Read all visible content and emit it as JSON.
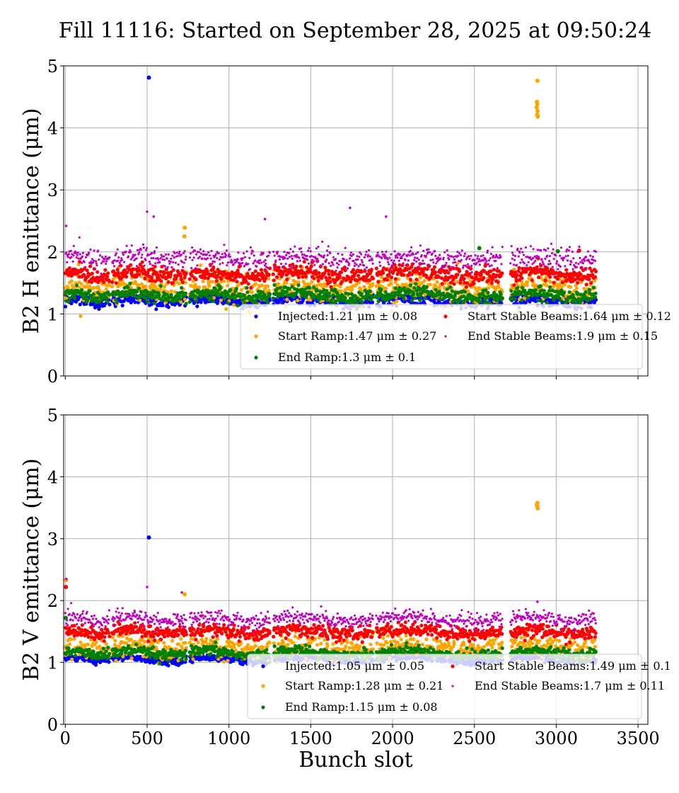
{
  "figure": {
    "title": "Fill 11116: Started on September 28, 2025 at 09:50:24"
  },
  "chart_data": [
    {
      "type": "scatter",
      "ylabel": "B2 H emittance (μm)",
      "xlabel": "",
      "xlim": [
        -10,
        3560
      ],
      "ylim": [
        0,
        5
      ],
      "x_ticks": [
        "0",
        "500",
        "1000",
        "1500",
        "2000",
        "2500",
        "3000",
        "3500"
      ],
      "y_ticks": [
        "0",
        "1",
        "2",
        "3",
        "4",
        "5"
      ],
      "grid": true,
      "legend_position": "lower-right",
      "occupied_ranges": [
        [
          0,
          270
        ],
        [
          285,
          740
        ],
        [
          760,
          1250
        ],
        [
          1270,
          1880
        ],
        [
          1900,
          2670
        ],
        [
          2720,
          3240
        ]
      ],
      "series": [
        {
          "name": "Injected",
          "legend": "Injected:1.21 μm ± 0.08",
          "mean": 1.21,
          "std": 0.08,
          "color": "#0000ff",
          "outliers": [
            [
              511,
              4.81
            ]
          ]
        },
        {
          "name": "Start Ramp",
          "legend": "Start Ramp:1.47 μm ± 0.27",
          "mean": 1.47,
          "std": 0.27,
          "color": "#ffa500",
          "outliers": [
            [
              730,
              2.39
            ],
            [
              728,
              2.25
            ],
            [
              2885,
              4.76
            ],
            [
              2882,
              4.42
            ],
            [
              2884,
              4.38
            ],
            [
              2880,
              4.33
            ],
            [
              2886,
              4.27
            ],
            [
              2883,
              4.21
            ],
            [
              2887,
              4.18
            ]
          ]
        },
        {
          "name": "End Ramp",
          "legend": "End Ramp:1.3 μm ± 0.1",
          "mean": 1.3,
          "std": 0.1,
          "color": "#008000",
          "outliers": [
            [
              2530,
              2.06
            ],
            [
              3010,
              2.01
            ]
          ]
        },
        {
          "name": "Start Stable Beams",
          "legend": "Start Stable Beams:1.64 μm ± 0.12",
          "mean": 1.64,
          "std": 0.12,
          "color": "#ff0000",
          "outliers": [
            [
              3140,
              2.02
            ]
          ]
        },
        {
          "name": "End Stable Beams",
          "legend": "End Stable Beams:1.9 μm ± 0.15",
          "mean": 1.9,
          "std": 0.15,
          "color": "#bf00bf",
          "outliers": [
            [
              500,
              2.65
            ],
            [
              1740,
              2.71
            ],
            [
              1960,
              2.57
            ],
            [
              1220,
              2.53
            ],
            [
              540,
              2.57
            ],
            [
              5,
              2.42
            ]
          ]
        }
      ]
    },
    {
      "type": "scatter",
      "ylabel": "B2 V emittance (μm)",
      "xlabel": "Bunch slot",
      "xlim": [
        -10,
        3560
      ],
      "ylim": [
        0,
        5
      ],
      "x_ticks": [
        "0",
        "500",
        "1000",
        "1500",
        "2000",
        "2500",
        "3000",
        "3500"
      ],
      "y_ticks": [
        "0",
        "1",
        "2",
        "3",
        "4",
        "5"
      ],
      "grid": true,
      "legend_position": "lower-right",
      "occupied_ranges": [
        [
          0,
          270
        ],
        [
          285,
          740
        ],
        [
          760,
          1250
        ],
        [
          1270,
          1880
        ],
        [
          1900,
          2670
        ],
        [
          2720,
          3240
        ]
      ],
      "series": [
        {
          "name": "Injected",
          "legend": "Injected:1.05 μm ± 0.05",
          "mean": 1.05,
          "std": 0.05,
          "color": "#0000ff",
          "outliers": [
            [
              511,
              3.02
            ]
          ]
        },
        {
          "name": "Start Ramp",
          "legend": "Start Ramp:1.28 μm ± 0.21",
          "mean": 1.28,
          "std": 0.21,
          "color": "#ffa500",
          "outliers": [
            [
              2885,
              3.58
            ],
            [
              2882,
              3.55
            ],
            [
              2884,
              3.52
            ],
            [
              2887,
              3.49
            ],
            [
              730,
              2.1
            ],
            [
              5,
              2.33
            ]
          ]
        },
        {
          "name": "End Ramp",
          "legend": "End Ramp:1.15 μm ± 0.08",
          "mean": 1.15,
          "std": 0.08,
          "color": "#008000",
          "outliers": [
            [
              3,
              1.72
            ]
          ]
        },
        {
          "name": "Start Stable Beams",
          "legend": "Start Stable Beams:1.49 μm ± 0.1",
          "mean": 1.49,
          "std": 0.1,
          "color": "#ff0000",
          "outliers": [
            [
              4,
              2.22
            ]
          ]
        },
        {
          "name": "End Stable Beams",
          "legend": "End Stable Beams:1.7 μm ± 0.11",
          "mean": 1.7,
          "std": 0.11,
          "color": "#bf00bf",
          "outliers": [
            [
              500,
              2.22
            ],
            [
              2885,
              1.98
            ],
            [
              712,
              2.13
            ],
            [
              5,
              2.35
            ]
          ]
        }
      ]
    }
  ]
}
